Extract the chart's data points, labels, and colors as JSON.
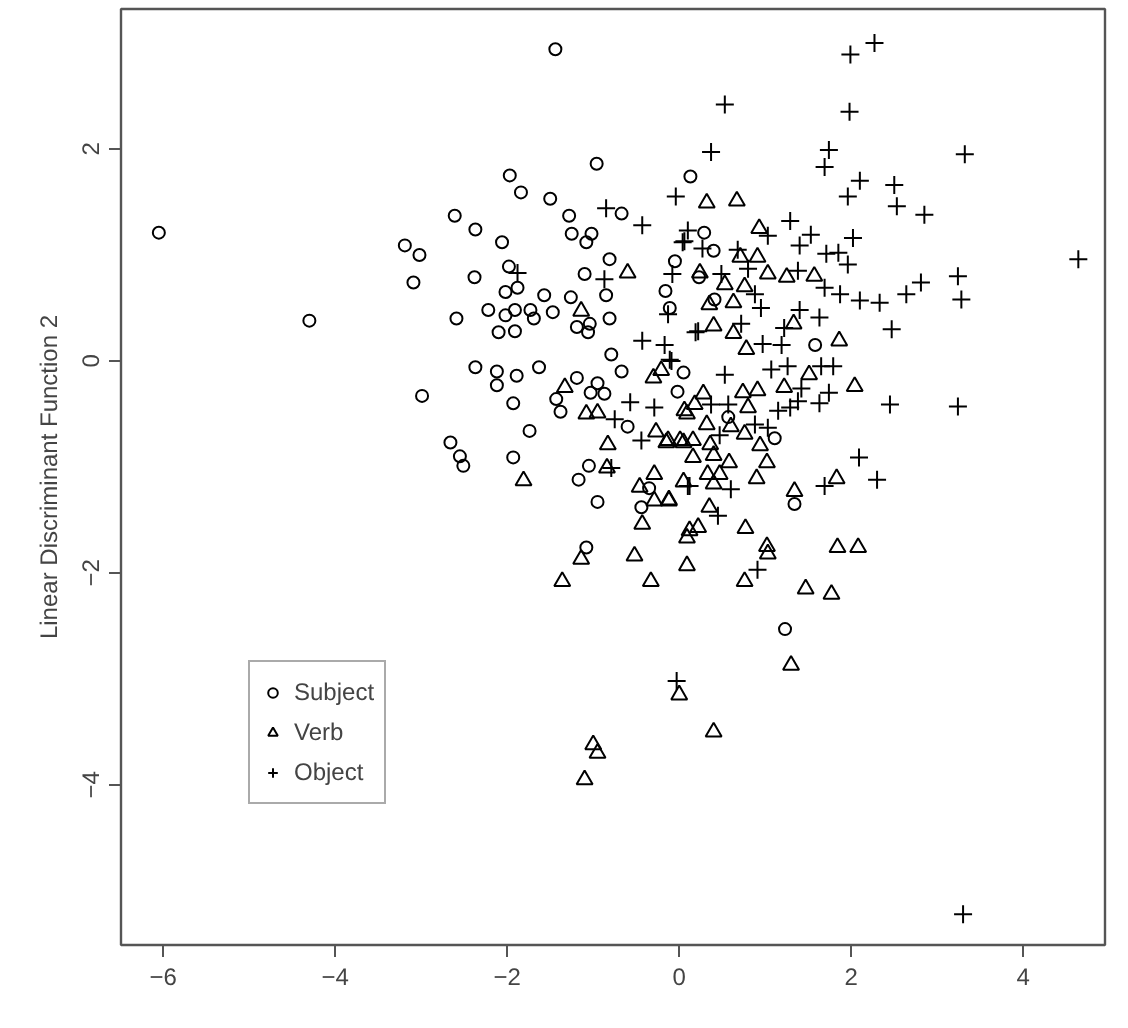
{
  "chart_data": {
    "type": "scatter",
    "ylabel": "Linear Discriminant Function 2",
    "xlim": [
      -6.49,
      4.95
    ],
    "ylim": [
      -5.51,
      3.32
    ],
    "xticks": [
      {
        "value": -6,
        "label": "−6"
      },
      {
        "value": -4,
        "label": "−4"
      },
      {
        "value": -2,
        "label": "−2"
      },
      0,
      2,
      4
    ],
    "yticks": [
      {
        "value": -4,
        "label": "−4"
      },
      {
        "value": -2,
        "label": "−2"
      },
      0,
      2
    ],
    "grid": false,
    "legend": "bottom left",
    "series": [
      {
        "name": "Subject",
        "color": "#000000",
        "marker": "circle",
        "x": [
          -6.05,
          -4.3,
          -1.44,
          -0.96,
          -1.97,
          -1.84,
          -1.5,
          -2.61,
          -2.37,
          -1.28,
          -0.67,
          -1.25,
          -1.02,
          -1.08,
          -2.06,
          -3.19,
          -3.02,
          -3.09,
          -2.38,
          -1.98,
          -0.81,
          -1.1,
          -1.88,
          -2.02,
          -1.57,
          -1.26,
          -0.85,
          -2.59,
          -2.22,
          -2.02,
          -1.91,
          -1.73,
          -1.69,
          -1.47,
          -1.19,
          -1.04,
          -0.81,
          -2.1,
          -1.91,
          -1.06,
          -0.16,
          0.13,
          -2.37,
          -2.12,
          -2.12,
          -1.89,
          -1.63,
          -2.99,
          -1.93,
          -1.19,
          -0.95,
          -0.87,
          -1.43,
          -1.38,
          -1.03,
          -1.74,
          -2.66,
          -2.55,
          -2.51,
          -1.93,
          -1.05,
          -1.17,
          -0.95,
          -0.44,
          -1.08,
          -0.6,
          -0.35,
          -0.02,
          0.05,
          -0.67,
          -0.79,
          0.29,
          0.4,
          -0.05,
          0.23,
          -0.11,
          0.41,
          1.58,
          1.11,
          0.57,
          1.34,
          1.23
        ],
        "values": [
          1.21,
          0.38,
          2.94,
          1.86,
          1.75,
          1.59,
          1.53,
          1.37,
          1.24,
          1.37,
          1.39,
          1.2,
          1.2,
          1.12,
          1.12,
          1.09,
          1.0,
          0.74,
          0.79,
          0.89,
          0.96,
          0.82,
          0.69,
          0.65,
          0.62,
          0.6,
          0.62,
          0.4,
          0.48,
          0.43,
          0.48,
          0.48,
          0.4,
          0.46,
          0.32,
          0.35,
          0.4,
          0.27,
          0.28,
          0.27,
          0.66,
          1.74,
          -0.06,
          -0.1,
          -0.23,
          -0.14,
          -0.06,
          -0.33,
          -0.4,
          -0.16,
          -0.21,
          -0.31,
          -0.36,
          -0.48,
          -0.3,
          -0.66,
          -0.77,
          -0.9,
          -0.99,
          -0.91,
          -0.99,
          -1.12,
          -1.33,
          -1.38,
          -1.76,
          -0.62,
          -1.2,
          -0.29,
          -0.11,
          -0.1,
          0.06,
          1.21,
          1.04,
          0.94,
          0.79,
          0.5,
          0.58,
          0.15,
          -0.73,
          -0.53,
          -1.35,
          -2.53
        ]
      },
      {
        "name": "Verb",
        "color": "#000000",
        "marker": "triangle",
        "x": [
          -0.6,
          -1.14,
          -1.33,
          -1.08,
          -0.95,
          -1.81,
          -0.83,
          -0.84,
          -0.46,
          -0.29,
          -0.29,
          -0.12,
          -0.43,
          -1.14,
          -0.52,
          -1.36,
          -0.33,
          0.09,
          0.09,
          -0.15,
          -0.27,
          0.06,
          -0.3,
          -0.21,
          0.05,
          0.0,
          0.32,
          0.67,
          0.93,
          0.91,
          1.03,
          1.25,
          1.57,
          0.76,
          0.53,
          0.63,
          0.35,
          0.24,
          1.33,
          0.4,
          0.78,
          1.86,
          0.63,
          0.71,
          2.04,
          1.51,
          1.22,
          0.91,
          0.74,
          0.28,
          0.18,
          0.09,
          0.32,
          0.6,
          0.8,
          0.76,
          0.94,
          -0.13,
          0.01,
          0.16,
          0.36,
          0.16,
          0.4,
          0.58,
          1.02,
          0.9,
          0.33,
          0.47,
          0.4,
          0.05,
          -0.12,
          1.34,
          1.83,
          0.35,
          0.77,
          0.22,
          0.12,
          1.02,
          1.03,
          1.84,
          2.08,
          0.76,
          1.47,
          1.77,
          1.3,
          -1.0,
          -0.95,
          -1.1,
          0.4
        ],
        "values": [
          0.83,
          0.47,
          -0.25,
          -0.5,
          -0.49,
          -1.13,
          -0.79,
          -1.01,
          -1.19,
          -1.07,
          -1.32,
          -1.32,
          -1.54,
          -1.87,
          -1.84,
          -2.08,
          -2.08,
          -1.93,
          -1.67,
          -0.77,
          -0.67,
          -0.47,
          -0.16,
          -0.09,
          -0.77,
          -3.15,
          1.49,
          1.51,
          1.25,
          0.98,
          0.82,
          0.79,
          0.8,
          0.7,
          0.72,
          0.55,
          0.53,
          0.83,
          0.35,
          0.33,
          0.11,
          0.19,
          0.26,
          0.98,
          -0.24,
          -0.13,
          -0.25,
          -0.28,
          -0.3,
          -0.31,
          -0.41,
          -0.5,
          -0.6,
          -0.62,
          -0.44,
          -0.69,
          -0.8,
          -0.75,
          -0.75,
          -0.75,
          -0.79,
          -0.91,
          -0.89,
          -0.96,
          -0.96,
          -1.11,
          -1.07,
          -1.07,
          -1.16,
          -1.14,
          -1.31,
          -1.23,
          -1.11,
          -1.38,
          -1.58,
          -1.57,
          -1.6,
          -1.75,
          -1.82,
          -1.76,
          -1.76,
          -2.08,
          -2.15,
          -2.2,
          -2.87,
          -3.62,
          -3.7,
          -3.95,
          -3.5
        ]
      },
      {
        "name": "Object",
        "color": "#000000",
        "marker": "cross",
        "x": [
          -0.85,
          -0.43,
          -0.04,
          0.1,
          0.04,
          -0.87,
          -0.08,
          -1.88,
          -0.43,
          -0.17,
          0.19,
          -0.13,
          -0.57,
          -0.75,
          -0.29,
          -0.11,
          -0.79,
          0.12,
          -0.44,
          -0.03,
          2.27,
          1.99,
          0.53,
          1.98,
          0.37,
          3.32,
          1.74,
          1.69,
          2.1,
          2.5,
          1.96,
          2.53,
          2.85,
          1.29,
          4.64,
          2.02,
          1.53,
          1.4,
          1.03,
          1.71,
          1.85,
          1.96,
          3.24,
          3.28,
          2.81,
          2.64,
          2.33,
          2.1,
          1.87,
          1.69,
          1.38,
          1.4,
          1.63,
          2.47,
          1.22,
          0.72,
          0.22,
          0.97,
          1.19,
          0.95,
          0.88,
          0.49,
          0.06,
          0.68,
          0.8,
          0.27,
          2.45,
          3.24,
          2.09,
          2.3,
          1.69,
          0.91,
          0.45,
          0.6,
          0.1,
          1.63,
          1.38,
          1.29,
          1.15,
          1.74,
          1.42,
          1.65,
          1.79,
          1.26,
          1.07,
          0.57,
          0.37,
          0.88,
          1.03,
          0.47,
          -0.09,
          0.53,
          3.3
        ],
        "values": [
          1.44,
          1.28,
          1.55,
          1.23,
          1.12,
          0.77,
          0.82,
          0.83,
          0.19,
          0.15,
          0.27,
          0.44,
          -0.39,
          -0.55,
          -0.44,
          0.01,
          -1.01,
          -1.18,
          -0.75,
          -3.02,
          3.0,
          2.89,
          2.42,
          2.35,
          1.97,
          1.95,
          1.99,
          1.83,
          1.7,
          1.66,
          1.55,
          1.46,
          1.38,
          1.32,
          0.96,
          1.16,
          1.19,
          1.09,
          1.18,
          1.01,
          1.02,
          0.91,
          0.8,
          0.58,
          0.74,
          0.63,
          0.55,
          0.57,
          0.63,
          0.69,
          0.85,
          0.48,
          0.41,
          0.3,
          0.31,
          0.35,
          0.28,
          0.16,
          0.15,
          0.5,
          0.63,
          0.82,
          1.13,
          1.05,
          0.87,
          1.06,
          -0.41,
          -0.43,
          -0.91,
          -1.12,
          -1.18,
          -1.97,
          -1.46,
          -1.21,
          -1.18,
          -0.4,
          -0.38,
          -0.44,
          -0.47,
          -0.3,
          -0.26,
          -0.05,
          -0.05,
          -0.05,
          -0.08,
          -0.41,
          -0.41,
          -0.6,
          -0.63,
          -0.7,
          0.0,
          -0.13,
          -5.22
        ]
      }
    ]
  }
}
